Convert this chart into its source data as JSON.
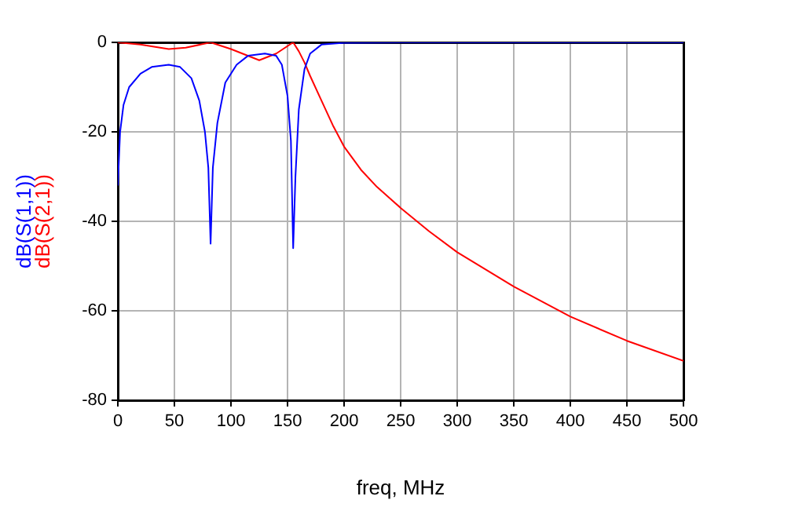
{
  "chart_data": {
    "type": "line",
    "xlabel": "freq, MHz",
    "xlim": [
      0,
      500
    ],
    "xticks": [
      0,
      50,
      100,
      150,
      200,
      250,
      300,
      350,
      400,
      450,
      500
    ],
    "ylim": [
      -80,
      0
    ],
    "yticks": [
      -80,
      -60,
      -40,
      -20,
      0
    ],
    "grid": true,
    "legend": false,
    "marker": "none",
    "line_style": "solid",
    "series": [
      {
        "name": "dB(S(1,1))",
        "color": "#0000ff",
        "x": [
          0,
          2,
          5,
          10,
          20,
          30,
          45,
          55,
          65,
          72,
          77,
          80,
          82,
          84,
          88,
          95,
          105,
          115,
          130,
          140,
          145,
          150,
          153,
          155,
          157,
          160,
          165,
          170,
          180,
          200,
          250,
          500
        ],
        "values": [
          -32,
          -20,
          -14,
          -10,
          -7,
          -5.5,
          -5,
          -5.5,
          -8,
          -13,
          -20,
          -28,
          -45,
          -28,
          -18,
          -9,
          -5,
          -3,
          -2.5,
          -3,
          -5,
          -12,
          -22,
          -46,
          -30,
          -15,
          -6,
          -2.5,
          -0.5,
          -0.1,
          0,
          0
        ]
      },
      {
        "name": "dB(S(2,1))",
        "color": "#ff0000",
        "x": [
          0,
          20,
          45,
          60,
          82,
          100,
          125,
          140,
          155,
          160,
          165,
          170,
          180,
          190,
          200,
          215,
          229,
          250,
          275,
          300,
          350,
          400,
          450,
          500
        ],
        "values": [
          0,
          -0.5,
          -1.5,
          -1.2,
          0,
          -1.5,
          -4,
          -2.5,
          0,
          -2,
          -4.5,
          -7.5,
          -13,
          -18.5,
          -23.3,
          -28.5,
          -32.3,
          -37,
          -42.2,
          -46.9,
          -54.6,
          -61.3,
          -66.7,
          -71.2
        ]
      }
    ]
  }
}
